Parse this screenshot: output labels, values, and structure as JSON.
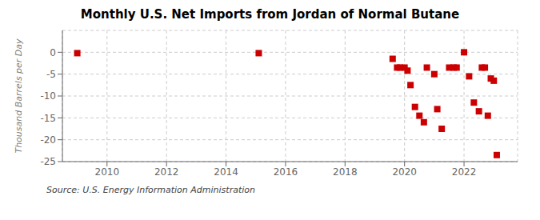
{
  "chart_data": {
    "type": "scatter",
    "title": "Monthly U.S. Net Imports from Jordan of Normal Butane",
    "ylabel": "Thousand Barrels per Day",
    "annotations": [
      "Source: U.S. Energy Information Administration"
    ],
    "x": [
      2009.0,
      2015.1,
      2019.6,
      2019.75,
      2019.85,
      2020.0,
      2020.1,
      2020.2,
      2020.35,
      2020.5,
      2020.65,
      2020.75,
      2021.0,
      2021.1,
      2021.25,
      2021.5,
      2021.65,
      2021.75,
      2022.0,
      2022.17,
      2022.33,
      2022.5,
      2022.6,
      2022.7,
      2022.8,
      2022.9,
      2023.0,
      2023.1
    ],
    "values": [
      -0.2,
      -0.2,
      -1.5,
      -3.5,
      -3.5,
      -3.5,
      -4.2,
      -7.5,
      -12.5,
      -14.5,
      -16.0,
      -3.5,
      -5.0,
      -13.0,
      -17.5,
      -3.5,
      -3.5,
      -3.5,
      0.0,
      -5.5,
      -11.5,
      -13.5,
      -3.5,
      -3.5,
      -14.5,
      -6.0,
      -6.5,
      -23.5
    ],
    "color": "#cc0000",
    "marker": "square",
    "xlim": [
      2008.5,
      2023.8
    ],
    "xticks": [
      2010,
      2012,
      2014,
      2016,
      2018,
      2020,
      2022
    ],
    "ylim": [
      -25,
      5
    ],
    "yticks": [
      0,
      -5,
      -10,
      -15,
      -20,
      -25
    ],
    "grid": true
  }
}
